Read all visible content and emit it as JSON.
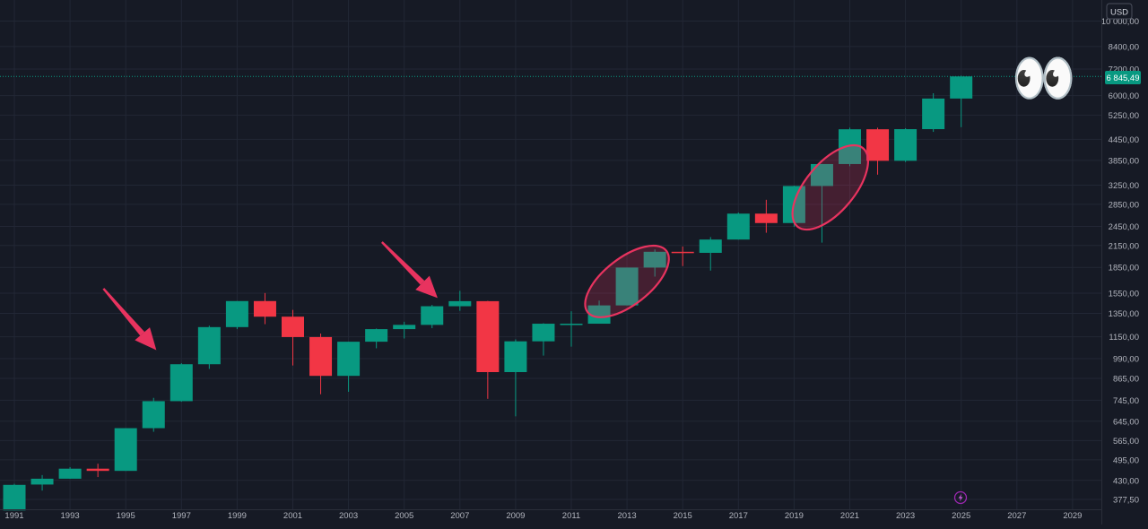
{
  "currency_button": "USD",
  "last_price_label": "6 845,49",
  "alert_icon": "lightning-bolt-icon",
  "emoji_eyes": "👀",
  "colors": {
    "background": "#161a25",
    "grid": "#222735",
    "up": "#089981",
    "down": "#f23645",
    "axis_text": "#b2b5be",
    "annotation": "#e8335f",
    "price_line": "#089981"
  },
  "chart_data": {
    "type": "candlestick",
    "interval": "yearly",
    "y_scale": "log",
    "ylim": [
      350,
      11000
    ],
    "xlim": [
      1991,
      2030
    ],
    "y_ticks": [
      {
        "value": 377.5,
        "label": "377,50"
      },
      {
        "value": 430,
        "label": "430,00"
      },
      {
        "value": 495,
        "label": "495,00"
      },
      {
        "value": 565,
        "label": "565,00"
      },
      {
        "value": 645,
        "label": "645,00"
      },
      {
        "value": 745,
        "label": "745,00"
      },
      {
        "value": 865,
        "label": "865,00"
      },
      {
        "value": 990,
        "label": "990,00"
      },
      {
        "value": 1150,
        "label": "1150,00"
      },
      {
        "value": 1350,
        "label": "1350,00"
      },
      {
        "value": 1550,
        "label": "1550,00"
      },
      {
        "value": 1850,
        "label": "1850,00"
      },
      {
        "value": 2150,
        "label": "2150,00"
      },
      {
        "value": 2450,
        "label": "2450,00"
      },
      {
        "value": 2850,
        "label": "2850,00"
      },
      {
        "value": 3250,
        "label": "3250,00"
      },
      {
        "value": 3850,
        "label": "3850,00"
      },
      {
        "value": 4450,
        "label": "4450,00"
      },
      {
        "value": 5250,
        "label": "5250,00"
      },
      {
        "value": 6000,
        "label": "6000,00"
      },
      {
        "value": 7200,
        "label": "7200,00"
      },
      {
        "value": 8400,
        "label": "8400,00"
      },
      {
        "value": 10000,
        "label": "10 000,00"
      }
    ],
    "x_ticks": [
      "1991",
      "1993",
      "1995",
      "1997",
      "1999",
      "2001",
      "2003",
      "2005",
      "2007",
      "2009",
      "2011",
      "2013",
      "2015",
      "2017",
      "2019",
      "2021",
      "2023",
      "2025",
      "2027",
      "2029"
    ],
    "last_price": 6845.49,
    "candles": [
      {
        "year": 1991,
        "open": 350,
        "high": 420,
        "low": 350,
        "close": 417
      },
      {
        "year": 1992,
        "open": 418,
        "high": 446,
        "low": 401,
        "close": 435
      },
      {
        "year": 1993,
        "open": 435,
        "high": 471,
        "low": 435,
        "close": 466
      },
      {
        "year": 1994,
        "open": 466,
        "high": 482,
        "low": 440,
        "close": 459
      },
      {
        "year": 1995,
        "open": 459,
        "high": 615,
        "low": 459,
        "close": 615
      },
      {
        "year": 1996,
        "open": 615,
        "high": 757,
        "low": 600,
        "close": 740
      },
      {
        "year": 1997,
        "open": 740,
        "high": 960,
        "low": 737,
        "close": 953
      },
      {
        "year": 1998,
        "open": 953,
        "high": 1241,
        "low": 923,
        "close": 1229
      },
      {
        "year": 1999,
        "open": 1229,
        "high": 1469,
        "low": 1212,
        "close": 1469
      },
      {
        "year": 2000,
        "open": 1469,
        "high": 1552,
        "low": 1254,
        "close": 1320
      },
      {
        "year": 2001,
        "open": 1320,
        "high": 1383,
        "low": 945,
        "close": 1148
      },
      {
        "year": 2002,
        "open": 1148,
        "high": 1176,
        "low": 776,
        "close": 880
      },
      {
        "year": 2003,
        "open": 880,
        "high": 1112,
        "low": 789,
        "close": 1112
      },
      {
        "year": 2004,
        "open": 1112,
        "high": 1217,
        "low": 1063,
        "close": 1212
      },
      {
        "year": 2005,
        "open": 1212,
        "high": 1275,
        "low": 1137,
        "close": 1248
      },
      {
        "year": 2006,
        "open": 1248,
        "high": 1431,
        "low": 1220,
        "close": 1418
      },
      {
        "year": 2007,
        "open": 1418,
        "high": 1576,
        "low": 1374,
        "close": 1468
      },
      {
        "year": 2008,
        "open": 1468,
        "high": 1471,
        "low": 752,
        "close": 903
      },
      {
        "year": 2009,
        "open": 903,
        "high": 1130,
        "low": 667,
        "close": 1115
      },
      {
        "year": 2010,
        "open": 1115,
        "high": 1262,
        "low": 1011,
        "close": 1258
      },
      {
        "year": 2011,
        "open": 1258,
        "high": 1370,
        "low": 1075,
        "close": 1258
      },
      {
        "year": 2012,
        "open": 1258,
        "high": 1474,
        "low": 1258,
        "close": 1426
      },
      {
        "year": 2013,
        "open": 1426,
        "high": 1849,
        "low": 1426,
        "close": 1848
      },
      {
        "year": 2014,
        "open": 1848,
        "high": 2093,
        "low": 1737,
        "close": 2059
      },
      {
        "year": 2015,
        "open": 2059,
        "high": 2135,
        "low": 1867,
        "close": 2044
      },
      {
        "year": 2016,
        "open": 2044,
        "high": 2277,
        "low": 1810,
        "close": 2239
      },
      {
        "year": 2017,
        "open": 2239,
        "high": 2695,
        "low": 2238,
        "close": 2674
      },
      {
        "year": 2018,
        "open": 2674,
        "high": 2940,
        "low": 2346,
        "close": 2507
      },
      {
        "year": 2019,
        "open": 2507,
        "high": 3240,
        "low": 2443,
        "close": 3231
      },
      {
        "year": 2020,
        "open": 3231,
        "high": 3756,
        "low": 2192,
        "close": 3756
      },
      {
        "year": 2021,
        "open": 3756,
        "high": 4818,
        "low": 3700,
        "close": 4766
      },
      {
        "year": 2022,
        "open": 4766,
        "high": 4818,
        "low": 3492,
        "close": 3840
      },
      {
        "year": 2023,
        "open": 3840,
        "high": 4800,
        "low": 3808,
        "close": 4770
      },
      {
        "year": 2024,
        "open": 4770,
        "high": 6100,
        "low": 4682,
        "close": 5882
      },
      {
        "year": 2025,
        "open": 5882,
        "high": 6885,
        "low": 4835,
        "close": 6845
      }
    ],
    "annotations": [
      {
        "type": "arrow",
        "color": "#e8335f",
        "from": {
          "year": 1994.2,
          "price": 1600
        },
        "to": {
          "year": 1996.1,
          "price": 1050
        }
      },
      {
        "type": "arrow",
        "color": "#e8335f",
        "from": {
          "year": 2004.2,
          "price": 2200
        },
        "to": {
          "year": 2006.2,
          "price": 1500
        }
      },
      {
        "type": "ellipse",
        "color": "#e8335f",
        "center": {
          "year": 2013.0,
          "price": 1680
        },
        "rx_years": 2.1,
        "rx_price_low": 1150,
        "angle_deg": -38
      },
      {
        "type": "ellipse",
        "color": "#e8335f",
        "center": {
          "year": 2020.3,
          "price": 3200
        },
        "rx_years": 2.1,
        "rx_price_low": 2150,
        "angle_deg": -50
      }
    ]
  }
}
